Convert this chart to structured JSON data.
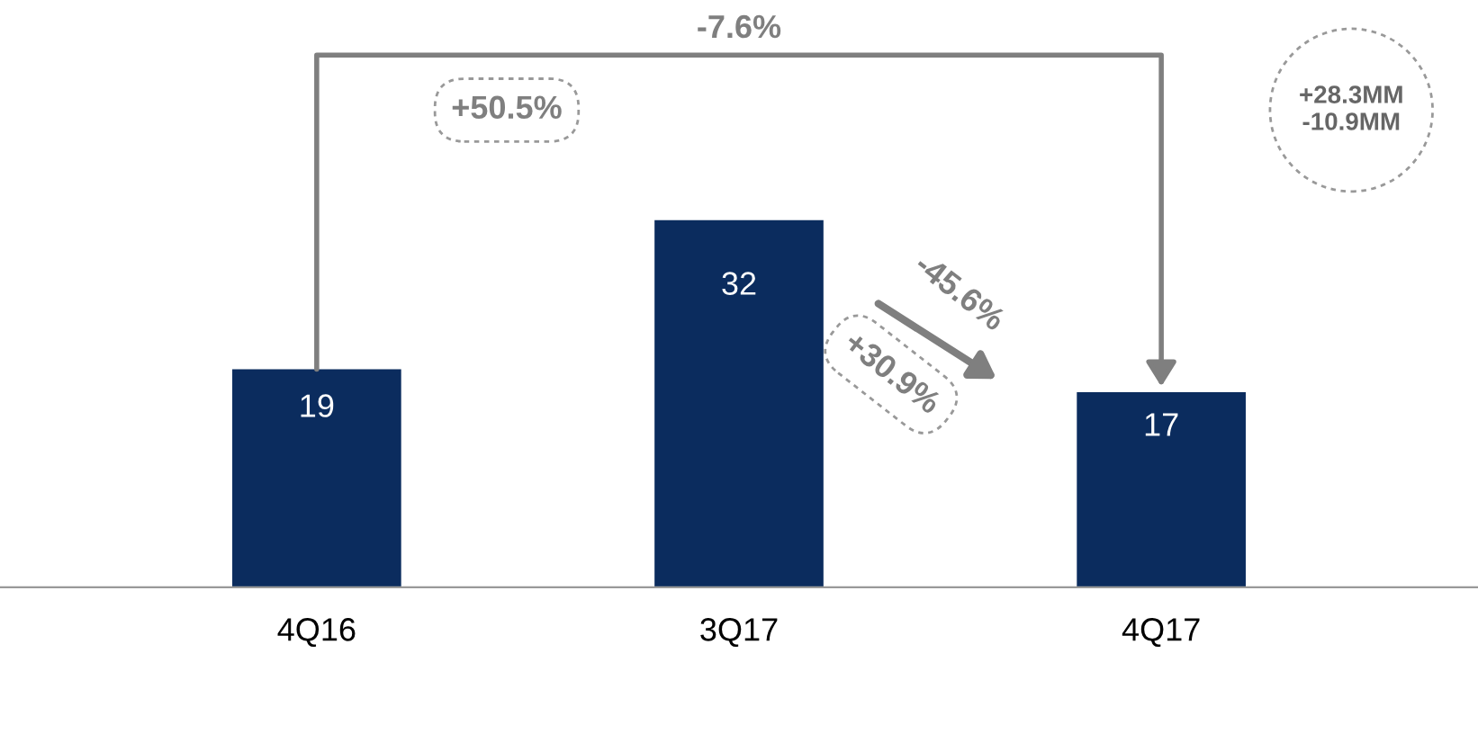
{
  "chart_data": {
    "type": "bar",
    "categories": [
      "4Q16",
      "3Q17",
      "4Q17"
    ],
    "values": [
      19,
      32,
      17
    ],
    "color": "#0b2c5e",
    "data_labels": true,
    "grid": false,
    "annotations": [
      "-7.6%",
      "+50.5%",
      "-45.6%",
      "+30.9%",
      "+28.3MM\n-10.9MM"
    ]
  }
}
